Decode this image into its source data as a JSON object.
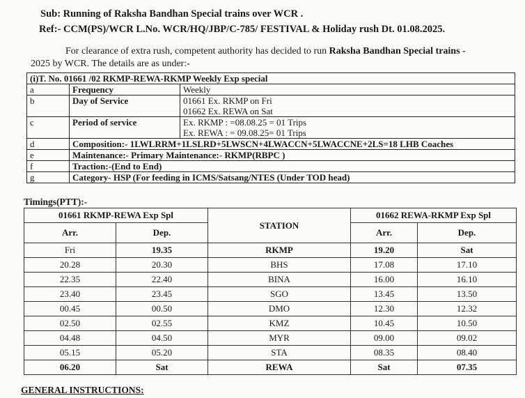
{
  "subject": "Sub: Running  of Raksha Bandhan Special trains over WCR .",
  "reference": "Ref:- CCM(PS)/WCR L.No. WCR/HQ/JBP/C-785/ FESTIVAL & Holiday rush Dt. 01.08.2025.",
  "para_line1_prefix": "For clearance of extra rush, competent authority has decided to run ",
  "para_line1_bold": "Raksha Bandhan Special trains -",
  "para_line2": "2025 by WCR. The details are as under:-",
  "details": {
    "title": "(i)T. No. 01661 /02 RKMP-REWA-RKMP Weekly Exp special",
    "rows": [
      {
        "id": "a",
        "key": "Frequency",
        "value": [
          "Weekly"
        ]
      },
      {
        "id": "b",
        "key": "Day of Service",
        "value": [
          "01661 Ex. RKMP on Fri",
          "01662 Ex. REWA on Sat"
        ]
      },
      {
        "id": "c",
        "key": "Period of service",
        "value": [
          "Ex. RKMP : =08.08.25 = 01 Trips",
          "Ex. REWA : = 09.08.25= 01 Trips"
        ]
      },
      {
        "id": "d",
        "text": "Composition:- 1LWLRRM+1LSLRD+5LWSCN+4LWACCN+5LWACCNE+2LS=18 LHB Coaches"
      },
      {
        "id": "e",
        "text": "Maintenance:- Primary Maintenance:- RKMP(RBPC )"
      },
      {
        "id": "f",
        "text": "Traction:-(End to End)"
      },
      {
        "id": "g",
        "text": "Category- HSP (For feeding in ICMS/Satsang/NTES  (Under TOD head)"
      }
    ]
  },
  "timings_label": "Timings(PTT):-",
  "timetable": {
    "train_down": "01661 RKMP-REWA Exp Spl",
    "train_up": "01662 REWA-RKMP Exp Spl",
    "station_header": "STATION",
    "arr": "Arr.",
    "dep": "Dep.",
    "rows": [
      [
        "Fri",
        "19.35",
        "RKMP",
        "19.20",
        "Sat"
      ],
      [
        "20.28",
        "20.30",
        "BHS",
        "17.08",
        "17.10"
      ],
      [
        "22.35",
        "22.40",
        "BINA",
        "16.00",
        "16.10"
      ],
      [
        "23.40",
        "23.45",
        "SGO",
        "13.45",
        "13.50"
      ],
      [
        "00.45",
        "00.50",
        "DMO",
        "12.30",
        "12.32"
      ],
      [
        "02.50",
        "02.55",
        "KMZ",
        "10.45",
        "10.50"
      ],
      [
        "04.48",
        "04.50",
        "MYR",
        "09.00",
        "09.02"
      ],
      [
        "05.15",
        "05.20",
        "STA",
        "08.35",
        "08.40"
      ],
      [
        "06.20",
        "Sat",
        "REWA",
        "Sat",
        "07.35"
      ]
    ]
  },
  "general_instructions": "GENERAL INSTRUCTIONS:"
}
